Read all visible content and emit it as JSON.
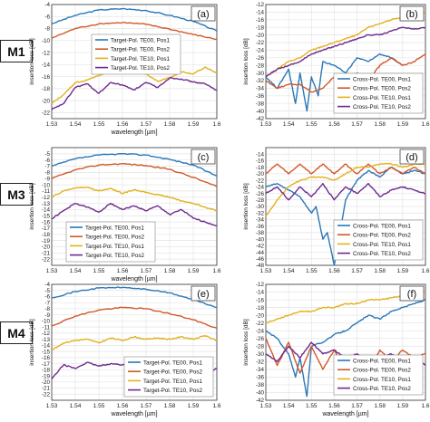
{
  "row_labels": [
    "M1",
    "M3",
    "M4"
  ],
  "colors": {
    "TE00_Pos1": "#2a77b8",
    "TE00_Pos2": "#d2582a",
    "TE10_Pos1": "#e3b11f",
    "TE10_Pos2": "#6e2a8e"
  },
  "chart_data": [
    {
      "panel": "(a)",
      "type": "line",
      "xlabel": "wavelength [µm]",
      "ylabel": "insertion loss [dB]",
      "xlim": [
        1.53,
        1.6
      ],
      "ylim": [
        -23,
        -4
      ],
      "xticks": [
        "1.53",
        "1.54",
        "1.55",
        "1.56",
        "1.57",
        "1.58",
        "1.59",
        "1.6"
      ],
      "yticks": [
        "-4",
        "-6",
        "-8",
        "-10",
        "-12",
        "-14",
        "-16",
        "-18",
        "-20",
        "-22"
      ],
      "legend_position": "upper-middle",
      "series": [
        {
          "name": "Target-Pol. TE00, Pos1",
          "x": [
            1.53,
            1.54,
            1.55,
            1.56,
            1.57,
            1.58,
            1.59,
            1.6
          ],
          "values": [
            -7.2,
            -5.8,
            -4.9,
            -4.7,
            -5.0,
            -5.8,
            -6.8,
            -8.4
          ]
        },
        {
          "name": "Target-Pol. TE00, Pos2",
          "x": [
            1.53,
            1.54,
            1.55,
            1.56,
            1.57,
            1.58,
            1.59,
            1.6
          ],
          "values": [
            -9.6,
            -8.0,
            -7.2,
            -7.0,
            -7.3,
            -8.1,
            -9.0,
            -9.8
          ]
        },
        {
          "name": "Target-Pol. TE10, Pos1",
          "x": [
            1.53,
            1.535,
            1.54,
            1.545,
            1.55,
            1.555,
            1.56,
            1.565,
            1.57,
            1.575,
            1.58,
            1.585,
            1.59,
            1.595,
            1.6
          ],
          "values": [
            -20.5,
            -19.0,
            -17.0,
            -16.6,
            -15.8,
            -15.2,
            -15.0,
            -15.4,
            -15.6,
            -16.8,
            -16.2,
            -15.2,
            -15.6,
            -14.4,
            -15.4
          ]
        },
        {
          "name": "Target-Pol. TE10, Pos2",
          "x": [
            1.53,
            1.535,
            1.54,
            1.545,
            1.55,
            1.555,
            1.56,
            1.565,
            1.57,
            1.575,
            1.58,
            1.585,
            1.59,
            1.595,
            1.6
          ],
          "values": [
            -21.5,
            -20.5,
            -17.8,
            -17.2,
            -18.8,
            -17.0,
            -17.4,
            -18.2,
            -17.0,
            -17.8,
            -16.2,
            -16.4,
            -16.9,
            -17.2,
            -18.3
          ]
        }
      ]
    },
    {
      "panel": "(b)",
      "type": "line",
      "xlabel": "",
      "ylabel": "insertion loss [dB]",
      "xlim": [
        1.53,
        1.6
      ],
      "ylim": [
        -42,
        -12
      ],
      "xticks": [
        "1.53",
        "1.54",
        "1.55",
        "1.56",
        "1.57",
        "1.58",
        "1.59",
        "1.6"
      ],
      "yticks": [
        "-12",
        "-14",
        "-16",
        "-18",
        "-20",
        "-22",
        "-24",
        "-26",
        "-28",
        "-30",
        "-32",
        "-34",
        "-36",
        "-38",
        "-40",
        "-42"
      ],
      "legend_position": "lower-right",
      "series": [
        {
          "name": "Cross-Pol. TE00, Pos1",
          "x": [
            1.53,
            1.535,
            1.54,
            1.543,
            1.545,
            1.548,
            1.55,
            1.553,
            1.555,
            1.56,
            1.565,
            1.57,
            1.575,
            1.58,
            1.585,
            1.59
          ],
          "values": [
            -31,
            -34,
            -29,
            -38,
            -30,
            -40,
            -31,
            -36,
            -27,
            -28,
            -30,
            -26,
            -27,
            -25,
            -26,
            -28
          ]
        },
        {
          "name": "Cross-Pol. TE00, Pos2",
          "x": [
            1.53,
            1.535,
            1.54,
            1.545,
            1.55,
            1.555,
            1.56,
            1.565,
            1.57,
            1.575,
            1.58,
            1.585,
            1.59,
            1.595,
            1.6
          ],
          "values": [
            -32,
            -34,
            -33,
            -33,
            -35,
            -34,
            -31,
            -33,
            -30,
            -32,
            -28,
            -26,
            -28,
            -27,
            -25
          ]
        },
        {
          "name": "Cross-Pol. TE10, Pos1",
          "x": [
            1.53,
            1.535,
            1.54,
            1.545,
            1.55,
            1.555,
            1.56,
            1.565,
            1.57,
            1.575,
            1.58,
            1.585,
            1.59,
            1.595,
            1.6
          ],
          "values": [
            -31,
            -29,
            -27,
            -26,
            -24,
            -23,
            -22,
            -21,
            -20,
            -18,
            -17,
            -16,
            -15.5,
            -14.5,
            -14
          ]
        },
        {
          "name": "Cross-Pol. TE10, Pos2",
          "x": [
            1.53,
            1.535,
            1.54,
            1.545,
            1.55,
            1.555,
            1.56,
            1.565,
            1.57,
            1.575,
            1.58,
            1.585,
            1.59,
            1.595,
            1.6
          ],
          "values": [
            -31,
            -29,
            -28,
            -27,
            -25,
            -24,
            -23,
            -22,
            -21,
            -20,
            -20,
            -19,
            -18,
            -18.5,
            -18
          ]
        }
      ]
    },
    {
      "panel": "(c)",
      "type": "line",
      "xlabel": "wavelength [µm]",
      "ylabel": "insertion loss [dB]",
      "xlim": [
        1.53,
        1.6
      ],
      "ylim": [
        -23,
        -4
      ],
      "xticks": [
        "1.53",
        "1.54",
        "1.55",
        "1.56",
        "1.57",
        "1.58",
        "1.59",
        "1.6"
      ],
      "yticks": [
        "-5",
        "-6",
        "-7",
        "-8",
        "-9",
        "-10",
        "-11",
        "-12",
        "-13",
        "-14",
        "-15",
        "-16",
        "-17",
        "-18",
        "-19",
        "-20",
        "-21",
        "-22"
      ],
      "legend_position": "bottom-left",
      "series": [
        {
          "name": "Target-Pol. TE00, Pos1",
          "x": [
            1.53,
            1.54,
            1.55,
            1.56,
            1.57,
            1.58,
            1.59,
            1.6
          ],
          "values": [
            -7.0,
            -5.8,
            -5.2,
            -5.0,
            -5.2,
            -5.9,
            -6.8,
            -8.6
          ]
        },
        {
          "name": "Target-Pol. TE00, Pos2",
          "x": [
            1.53,
            1.54,
            1.55,
            1.56,
            1.57,
            1.58,
            1.59,
            1.6
          ],
          "values": [
            -9.0,
            -7.6,
            -6.8,
            -6.6,
            -6.9,
            -7.5,
            -8.8,
            -10.3
          ]
        },
        {
          "name": "Target-Pol. TE10, Pos1",
          "x": [
            1.53,
            1.535,
            1.54,
            1.545,
            1.55,
            1.555,
            1.56,
            1.565,
            1.57,
            1.575,
            1.58,
            1.585,
            1.59,
            1.595,
            1.6
          ],
          "values": [
            -12.0,
            -11.0,
            -10.5,
            -10.4,
            -11.0,
            -10.6,
            -11.4,
            -10.8,
            -11.2,
            -11.6,
            -12.0,
            -12.6,
            -13.0,
            -13.6,
            -14.2
          ]
        },
        {
          "name": "Target-Pol. TE10, Pos2",
          "x": [
            1.53,
            1.535,
            1.54,
            1.545,
            1.55,
            1.555,
            1.56,
            1.565,
            1.57,
            1.575,
            1.58,
            1.585,
            1.59,
            1.595,
            1.6
          ],
          "values": [
            -15.5,
            -14.2,
            -13.0,
            -13.6,
            -14.4,
            -13.0,
            -14.0,
            -13.4,
            -14.2,
            -13.4,
            -14.8,
            -14.0,
            -15.4,
            -16.0,
            -16.6
          ]
        }
      ]
    },
    {
      "panel": "(d)",
      "type": "line",
      "xlabel": "",
      "ylabel": "insertion loss [dB]",
      "xlim": [
        1.53,
        1.6
      ],
      "ylim": [
        -48,
        -12
      ],
      "xticks": [
        "1.53",
        "1.54",
        "1.55",
        "1.56",
        "1.57",
        "1.58",
        "1.59",
        "1.6"
      ],
      "yticks": [
        "-14",
        "-16",
        "-18",
        "-20",
        "-22",
        "-24",
        "-26",
        "-28",
        "-30",
        "-32",
        "-34",
        "-36",
        "-38",
        "-40",
        "-42",
        "-44",
        "-46",
        "-48"
      ],
      "legend_position": "lower-right",
      "series": [
        {
          "name": "Cross-Pol. TE00, Pos1",
          "x": [
            1.53,
            1.535,
            1.54,
            1.545,
            1.55,
            1.552,
            1.555,
            1.557,
            1.56,
            1.565,
            1.57,
            1.575,
            1.58,
            1.585,
            1.59,
            1.595,
            1.6
          ],
          "values": [
            -24,
            -23,
            -25,
            -27,
            -32,
            -30,
            -40,
            -38,
            -48,
            -28,
            -22,
            -19,
            -21,
            -18,
            -20,
            -19,
            -20
          ]
        },
        {
          "name": "Cross-Pol. TE00, Pos2",
          "x": [
            1.53,
            1.535,
            1.54,
            1.545,
            1.55,
            1.555,
            1.56,
            1.565,
            1.57,
            1.575,
            1.58,
            1.585,
            1.59,
            1.595,
            1.6
          ],
          "values": [
            -20,
            -17,
            -20,
            -17,
            -20,
            -17,
            -20,
            -17,
            -20,
            -17,
            -20,
            -18,
            -20,
            -18,
            -20
          ]
        },
        {
          "name": "Cross-Pol. TE10, Pos1",
          "x": [
            1.53,
            1.535,
            1.54,
            1.545,
            1.55,
            1.555,
            1.56,
            1.565,
            1.57,
            1.575,
            1.58,
            1.585,
            1.59,
            1.595,
            1.6
          ],
          "values": [
            -33,
            -28,
            -24,
            -22,
            -21,
            -21,
            -22,
            -20,
            -18,
            -18,
            -17,
            -17,
            -18,
            -17,
            -17
          ]
        },
        {
          "name": "Cross-Pol. TE10, Pos2",
          "x": [
            1.53,
            1.535,
            1.54,
            1.545,
            1.55,
            1.555,
            1.56,
            1.565,
            1.57,
            1.575,
            1.58,
            1.585,
            1.59,
            1.595,
            1.6
          ],
          "values": [
            -26,
            -24,
            -28,
            -24,
            -27,
            -23,
            -28,
            -24,
            -26,
            -23,
            -27,
            -25,
            -24,
            -25,
            -26
          ]
        }
      ]
    },
    {
      "panel": "(e)",
      "type": "line",
      "xlabel": "wavelength [µm]",
      "ylabel": "insertion loss [dB]",
      "xlim": [
        1.53,
        1.6
      ],
      "ylim": [
        -23,
        -4
      ],
      "xticks": [
        "1.53",
        "1.54",
        "1.55",
        "1.56",
        "1.57",
        "1.58",
        "1.59",
        "1.6"
      ],
      "yticks": [
        "-4",
        "-5",
        "-6",
        "-7",
        "-8",
        "-9",
        "-10",
        "-11",
        "-12",
        "-13",
        "-14",
        "-15",
        "-16",
        "-17",
        "-18",
        "-19",
        "-20",
        "-21",
        "-22"
      ],
      "legend_position": "bottom-right",
      "series": [
        {
          "name": "Target-Pol. TE00, Pos1",
          "x": [
            1.53,
            1.54,
            1.55,
            1.56,
            1.57,
            1.58,
            1.59,
            1.6
          ],
          "values": [
            -6.2,
            -5.2,
            -4.6,
            -4.5,
            -4.8,
            -5.4,
            -6.5,
            -7.8
          ]
        },
        {
          "name": "Target-Pol. TE00, Pos2",
          "x": [
            1.53,
            1.54,
            1.55,
            1.56,
            1.57,
            1.58,
            1.59,
            1.6
          ],
          "values": [
            -10.8,
            -9.2,
            -8.2,
            -7.8,
            -8.0,
            -8.8,
            -9.8,
            -11.2
          ]
        },
        {
          "name": "Target-Pol. TE10, Pos1",
          "x": [
            1.53,
            1.535,
            1.54,
            1.545,
            1.55,
            1.555,
            1.56,
            1.565,
            1.57,
            1.575,
            1.58,
            1.585,
            1.59,
            1.595,
            1.6
          ],
          "values": [
            -14.8,
            -13.6,
            -13.2,
            -13.0,
            -13.6,
            -12.8,
            -13.2,
            -12.6,
            -13.0,
            -12.8,
            -13.0,
            -12.6,
            -13.0,
            -12.4,
            -13.2
          ]
        },
        {
          "name": "Target-Pol. TE10, Pos2",
          "x": [
            1.53,
            1.535,
            1.54,
            1.545,
            1.55,
            1.555,
            1.56,
            1.565,
            1.57,
            1.575,
            1.58,
            1.585,
            1.59,
            1.595,
            1.6
          ],
          "values": [
            -19.5,
            -17.2,
            -17.8,
            -16.8,
            -17.4,
            -17.0,
            -17.2,
            -16.6,
            -17.4,
            -17.2,
            -18.4,
            -18.8,
            -18.0,
            -18.6,
            -17.8
          ]
        }
      ]
    },
    {
      "panel": "(f)",
      "type": "line",
      "xlabel": "wavelength [µm]",
      "ylabel": "insertion loss [dB]",
      "xlim": [
        1.53,
        1.6
      ],
      "ylim": [
        -42,
        -12
      ],
      "xticks": [
        "1.53",
        "1.54",
        "1.55",
        "1.56",
        "1.57",
        "1.58",
        "1.59",
        "1.6"
      ],
      "yticks": [
        "-12",
        "-14",
        "-16",
        "-18",
        "-20",
        "-22",
        "-24",
        "-26",
        "-28",
        "-30",
        "-32",
        "-34",
        "-36",
        "-38",
        "-40",
        "-42"
      ],
      "legend_position": "lower-right",
      "series": [
        {
          "name": "Cross-Pol. TE00, Pos1",
          "x": [
            1.53,
            1.535,
            1.54,
            1.543,
            1.545,
            1.548,
            1.55,
            1.555,
            1.56,
            1.565,
            1.57,
            1.575,
            1.58,
            1.585,
            1.59,
            1.595,
            1.6
          ],
          "values": [
            -24,
            -26,
            -30,
            -36,
            -31,
            -41,
            -28,
            -27,
            -25,
            -24,
            -22,
            -20,
            -21,
            -19,
            -18,
            -17,
            -16
          ]
        },
        {
          "name": "Cross-Pol. TE00, Pos2",
          "x": [
            1.53,
            1.535,
            1.54,
            1.545,
            1.55,
            1.555,
            1.56,
            1.565,
            1.57,
            1.575,
            1.58,
            1.585,
            1.59,
            1.595,
            1.6
          ],
          "values": [
            -26,
            -33,
            -27,
            -35,
            -28,
            -34,
            -29,
            -34,
            -30,
            -34,
            -29,
            -32,
            -29,
            -31,
            -30
          ]
        },
        {
          "name": "Cross-Pol. TE10, Pos1",
          "x": [
            1.53,
            1.535,
            1.54,
            1.545,
            1.55,
            1.555,
            1.56,
            1.565,
            1.57,
            1.575,
            1.58,
            1.585,
            1.59,
            1.595,
            1.6
          ],
          "values": [
            -22,
            -21,
            -20,
            -19,
            -19,
            -18,
            -18,
            -17,
            -17,
            -16,
            -16,
            -15.5,
            -15,
            -14.5,
            -14
          ]
        },
        {
          "name": "Cross-Pol. TE10, Pos2",
          "x": [
            1.53,
            1.535,
            1.54,
            1.545,
            1.55,
            1.555,
            1.56,
            1.565,
            1.57,
            1.575,
            1.58,
            1.585,
            1.59,
            1.595,
            1.6
          ],
          "values": [
            -30,
            -32,
            -28,
            -31,
            -27,
            -30,
            -29,
            -31,
            -30,
            -32,
            -31,
            -30,
            -32,
            -31,
            -33
          ]
        }
      ]
    }
  ]
}
